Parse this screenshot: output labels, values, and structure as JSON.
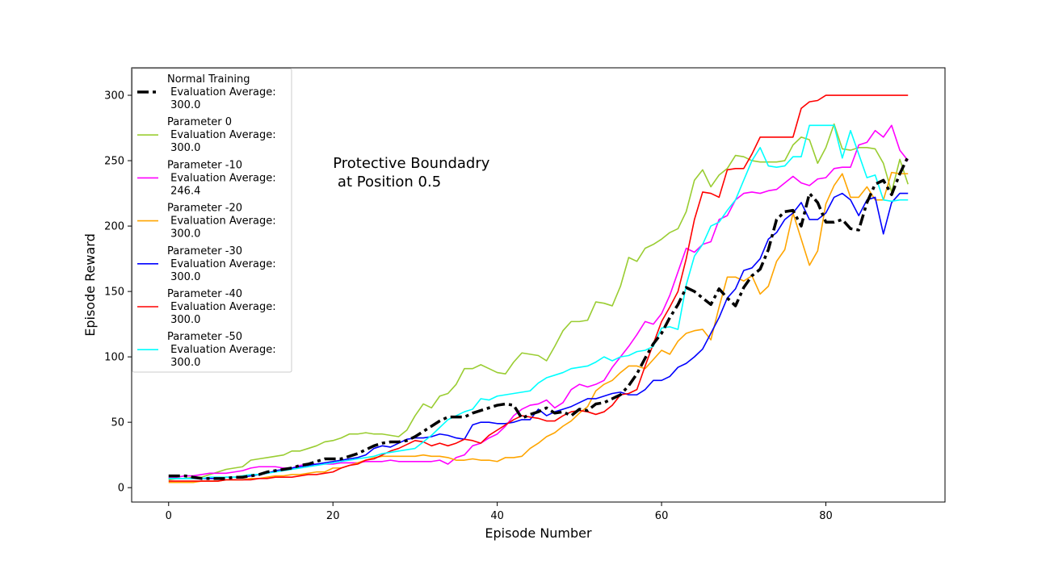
{
  "chart_data": {
    "type": "line",
    "xlabel": "Episode Number",
    "ylabel": "Episode Reward",
    "xlim": [
      -4.5,
      94.5
    ],
    "ylim": [
      -11,
      321
    ],
    "x_ticks": [
      0,
      20,
      40,
      60,
      80
    ],
    "y_ticks": [
      0,
      50,
      100,
      150,
      200,
      250,
      300
    ],
    "grid": false,
    "legend_position": "upper-left",
    "annotation": {
      "lines": [
        "Protective Boundadry",
        " at Position 0.5"
      ],
      "x": 20,
      "y": 250
    },
    "x": [
      0,
      1,
      2,
      3,
      4,
      5,
      6,
      7,
      8,
      9,
      10,
      11,
      12,
      13,
      14,
      15,
      16,
      17,
      18,
      19,
      20,
      21,
      22,
      23,
      24,
      25,
      26,
      27,
      28,
      29,
      30,
      31,
      32,
      33,
      34,
      35,
      36,
      37,
      38,
      39,
      40,
      41,
      42,
      43,
      44,
      45,
      46,
      47,
      48,
      49,
      50,
      51,
      52,
      53,
      54,
      55,
      56,
      57,
      58,
      59,
      60,
      61,
      62,
      63,
      64,
      65,
      66,
      67,
      68,
      69,
      70,
      71,
      72,
      73,
      74,
      75,
      76,
      77,
      78,
      79,
      80,
      81,
      82,
      83,
      84,
      85,
      86,
      87,
      88,
      89,
      90
    ],
    "series": [
      {
        "name": "Normal Training\n Evaluation Average:\n 300.0",
        "color": "#000000",
        "dashed": true,
        "width": 3.5,
        "values": [
          9,
          9,
          9,
          8,
          7,
          7,
          7,
          7,
          8,
          8,
          9,
          10,
          12,
          13,
          14,
          15,
          17,
          18,
          20,
          22,
          22,
          22,
          24,
          26,
          29,
          32,
          34,
          35,
          35,
          36,
          39,
          43,
          47,
          51,
          54,
          54,
          54,
          57,
          59,
          61,
          63,
          64,
          63,
          53,
          56,
          58,
          61,
          57,
          58,
          55,
          60,
          59,
          64,
          65,
          68,
          71,
          78,
          87,
          99,
          110,
          118,
          130,
          140,
          153,
          150,
          145,
          140,
          152,
          145,
          139,
          153,
          162,
          167,
          182,
          205,
          211,
          212,
          200,
          225,
          218,
          203,
          203,
          205,
          198,
          197,
          218,
          232,
          235,
          224,
          240,
          253
        ]
      },
      {
        "name": "Parameter 0\n Evaluation Average:\n 300.0",
        "color": "#9acd32",
        "dashed": false,
        "width": 1.6,
        "values": [
          6,
          7,
          7,
          8,
          8,
          10,
          12,
          14,
          15,
          16,
          21,
          22,
          23,
          24,
          25,
          28,
          28,
          30,
          32,
          35,
          36,
          38,
          41,
          41,
          42,
          41,
          41,
          40,
          39,
          44,
          55,
          64,
          61,
          70,
          72,
          79,
          91,
          91,
          94,
          91,
          88,
          87,
          96,
          103,
          102,
          101,
          97,
          108,
          120,
          127,
          127,
          128,
          142,
          141,
          139,
          154,
          176,
          173,
          183,
          186,
          190,
          195,
          198,
          211,
          235,
          243,
          230,
          239,
          244,
          254,
          253,
          250,
          249,
          249,
          249,
          250,
          262,
          268,
          266,
          248,
          260,
          278,
          259,
          258,
          260,
          260,
          259,
          248,
          226,
          251,
          232
        ]
      },
      {
        "name": "Parameter -10\n Evaluation Average:\n 246.4",
        "color": "#ff00ff",
        "dashed": false,
        "width": 1.6,
        "values": [
          8,
          8,
          9,
          9,
          10,
          11,
          11,
          11,
          12,
          13,
          15,
          16,
          16,
          16,
          15,
          15,
          17,
          18,
          18,
          18,
          18,
          19,
          19,
          19,
          20,
          20,
          20,
          21,
          20,
          20,
          20,
          20,
          20,
          21,
          18,
          23,
          25,
          32,
          34,
          38,
          41,
          47,
          55,
          60,
          63,
          64,
          67,
          61,
          65,
          75,
          79,
          77,
          79,
          82,
          92,
          100,
          108,
          117,
          127,
          125,
          133,
          147,
          165,
          183,
          180,
          186,
          188,
          205,
          208,
          220,
          225,
          226,
          225,
          227,
          228,
          233,
          238,
          233,
          231,
          236,
          237,
          244,
          245,
          245,
          262,
          264,
          273,
          268,
          277,
          258,
          250
        ]
      },
      {
        "name": "Parameter -20\n Evaluation Average:\n 300.0",
        "color": "#ffa500",
        "dashed": false,
        "width": 1.6,
        "values": [
          4,
          4,
          4,
          4,
          5,
          5,
          5,
          6,
          6,
          6,
          7,
          7,
          8,
          9,
          9,
          10,
          10,
          11,
          12,
          12,
          15,
          15,
          17,
          19,
          21,
          23,
          24,
          24,
          24,
          24,
          24,
          25,
          24,
          24,
          23,
          21,
          21,
          22,
          21,
          21,
          20,
          23,
          23,
          24,
          30,
          34,
          39,
          42,
          47,
          51,
          57,
          62,
          74,
          79,
          82,
          88,
          93,
          93,
          91,
          98,
          105,
          102,
          112,
          118,
          120,
          121,
          113,
          138,
          161,
          161,
          158,
          162,
          148,
          154,
          173,
          182,
          210,
          190,
          170,
          181,
          217,
          231,
          240,
          222,
          222,
          230,
          220,
          220,
          241,
          240,
          240
        ]
      },
      {
        "name": "Parameter -30\n Evaluation Average:\n 300.0",
        "color": "#0000ff",
        "dashed": false,
        "width": 1.6,
        "values": [
          7,
          7,
          7,
          7,
          7,
          7,
          7,
          8,
          8,
          8,
          9,
          10,
          11,
          13,
          14,
          15,
          16,
          17,
          18,
          19,
          20,
          21,
          22,
          23,
          25,
          30,
          32,
          31,
          34,
          37,
          38,
          38,
          39,
          41,
          40,
          38,
          37,
          48,
          50,
          50,
          49,
          49,
          50,
          52,
          52,
          60,
          55,
          58,
          60,
          62,
          65,
          68,
          68,
          70,
          72,
          73,
          71,
          71,
          75,
          82,
          82,
          85,
          92,
          95,
          100,
          106,
          118,
          130,
          145,
          152,
          166,
          168,
          175,
          190,
          195,
          205,
          210,
          218,
          205,
          205,
          210,
          222,
          225,
          220,
          208,
          220,
          222,
          194,
          218,
          225,
          225
        ]
      },
      {
        "name": "Parameter -40\n Evaluation Average:\n 300.0",
        "color": "#ff0000",
        "dashed": false,
        "width": 1.6,
        "values": [
          5,
          5,
          5,
          5,
          5,
          5,
          5,
          6,
          6,
          6,
          6,
          7,
          7,
          8,
          8,
          8,
          9,
          10,
          10,
          11,
          12,
          15,
          17,
          18,
          21,
          22,
          25,
          28,
          30,
          33,
          36,
          35,
          32,
          34,
          32,
          34,
          37,
          36,
          34,
          40,
          44,
          48,
          52,
          55,
          54,
          53,
          51,
          51,
          55,
          58,
          59,
          58,
          56,
          58,
          63,
          71,
          72,
          75,
          93,
          110,
          127,
          138,
          150,
          175,
          205,
          226,
          225,
          222,
          243,
          244,
          244,
          255,
          268,
          268,
          268,
          268,
          268,
          290,
          295,
          296,
          300,
          300,
          300,
          300,
          300,
          300,
          300,
          300,
          300,
          300,
          300
        ]
      },
      {
        "name": "Parameter -50\n Evaluation Average:\n 300.0",
        "color": "#00ffff",
        "dashed": false,
        "width": 1.6,
        "values": [
          7,
          7,
          7,
          7,
          7,
          8,
          8,
          8,
          8,
          9,
          10,
          10,
          11,
          12,
          13,
          14,
          15,
          16,
          17,
          18,
          19,
          20,
          21,
          22,
          23,
          24,
          26,
          27,
          28,
          29,
          30,
          35,
          40,
          46,
          52,
          55,
          58,
          60,
          68,
          67,
          70,
          71,
          72,
          73,
          74,
          80,
          84,
          86,
          88,
          91,
          92,
          93,
          96,
          100,
          97,
          100,
          101,
          104,
          105,
          108,
          122,
          123,
          121,
          155,
          177,
          186,
          200,
          203,
          212,
          220,
          235,
          250,
          260,
          246,
          245,
          246,
          253,
          253,
          277,
          277,
          277,
          277,
          252,
          273,
          255,
          237,
          239,
          220,
          219,
          220,
          220
        ]
      }
    ]
  }
}
